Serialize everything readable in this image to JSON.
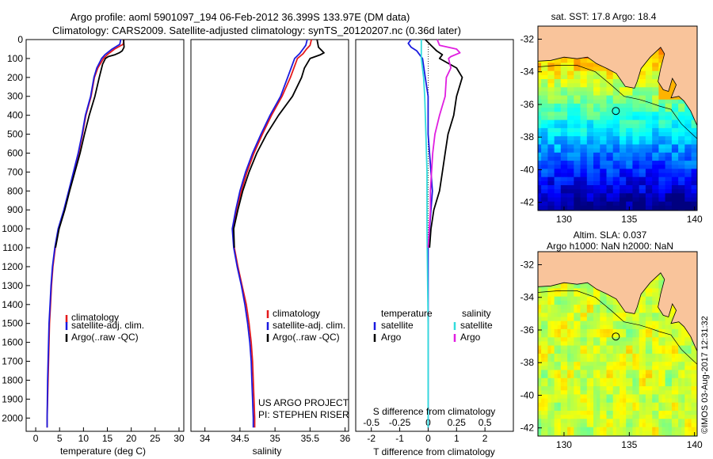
{
  "header": {
    "line1": "Argo profile: aoml 5901097_194 06-Feb-2012 36.399S 133.97E (DM data)",
    "line2": "Climatology: CARS2009. Satellite-adjusted climatology: synTS_20120207.nc (0.36d later)"
  },
  "colors": {
    "climatology": "#e41a1c",
    "satellite": "#1a1adf",
    "argo": "#000000",
    "satellite_salinity": "#33dddd",
    "argo_salinity": "#e01ee0",
    "land": "#f9c49b"
  },
  "depth_ticks": [
    0,
    100,
    200,
    300,
    400,
    500,
    600,
    700,
    800,
    900,
    1000,
    1100,
    1200,
    1300,
    1400,
    1500,
    1600,
    1700,
    1800,
    1900,
    2000
  ],
  "chart_data": [
    {
      "type": "line",
      "name": "temperature",
      "xlabel": "temperature (deg C)",
      "x_ticks": [
        0,
        5,
        10,
        15,
        20,
        25,
        30
      ],
      "xlim": [
        -2,
        31
      ],
      "ylim": [
        2070,
        0
      ],
      "legend": [
        "climatology",
        "satellite-adj. clim.",
        "Argo(..raw -QC)"
      ],
      "series": [
        {
          "name": "climatology",
          "points": [
            [
              18.5,
              0
            ],
            [
              18.3,
              25
            ],
            [
              16.5,
              50
            ],
            [
              15,
              80
            ],
            [
              14.2,
              100
            ],
            [
              13,
              150
            ],
            [
              12.3,
              200
            ],
            [
              11.6,
              300
            ],
            [
              10.5,
              400
            ],
            [
              9.8,
              500
            ],
            [
              9,
              600
            ],
            [
              8,
              700
            ],
            [
              7,
              800
            ],
            [
              6,
              900
            ],
            [
              4.8,
              1000
            ],
            [
              4.1,
              1100
            ],
            [
              3.6,
              1200
            ],
            [
              3.3,
              1300
            ],
            [
              3.1,
              1400
            ],
            [
              2.9,
              1500
            ],
            [
              2.8,
              1600
            ],
            [
              2.7,
              1700
            ],
            [
              2.6,
              1800
            ],
            [
              2.5,
              1900
            ],
            [
              2.4,
              2000
            ],
            [
              2.4,
              2050
            ]
          ]
        },
        {
          "name": "satellite-adj. clim.",
          "points": [
            [
              17.8,
              0
            ],
            [
              17.6,
              25
            ],
            [
              16,
              50
            ],
            [
              14.5,
              80
            ],
            [
              13.8,
              100
            ],
            [
              12.8,
              150
            ],
            [
              12.2,
              200
            ],
            [
              11.5,
              300
            ],
            [
              10.4,
              400
            ],
            [
              9.7,
              500
            ],
            [
              8.9,
              600
            ],
            [
              7.9,
              700
            ],
            [
              6.9,
              800
            ],
            [
              5.9,
              900
            ],
            [
              4.7,
              1000
            ],
            [
              4.0,
              1100
            ],
            [
              3.5,
              1200
            ],
            [
              3.2,
              1300
            ],
            [
              3.0,
              1400
            ],
            [
              2.8,
              1500
            ],
            [
              2.7,
              1600
            ],
            [
              2.6,
              1700
            ],
            [
              2.5,
              1800
            ],
            [
              2.45,
              1900
            ],
            [
              2.4,
              2000
            ],
            [
              2.4,
              2050
            ]
          ]
        },
        {
          "name": "Argo(..raw -QC)",
          "points": [
            [
              18.4,
              0
            ],
            [
              18.5,
              40
            ],
            [
              18.1,
              60
            ],
            [
              17.5,
              70
            ],
            [
              16.6,
              80
            ],
            [
              15.2,
              90
            ],
            [
              14.6,
              100
            ],
            [
              14,
              130
            ],
            [
              13.3,
              200
            ],
            [
              12.4,
              300
            ],
            [
              11.2,
              400
            ],
            [
              10.2,
              500
            ],
            [
              9.3,
              600
            ],
            [
              8.2,
              700
            ],
            [
              7.1,
              800
            ],
            [
              6.1,
              900
            ],
            [
              4.9,
              1000
            ],
            [
              4.15,
              1100
            ]
          ]
        }
      ]
    },
    {
      "type": "line",
      "name": "salinity",
      "xlabel": "salinity",
      "x_ticks": [
        34,
        34.5,
        35,
        35.5,
        36
      ],
      "xlim": [
        33.8,
        36.05
      ],
      "ylim": [
        2070,
        0
      ],
      "legend": [
        "climatology",
        "satellite-adj. clim.",
        "Argo(..raw -QC)"
      ],
      "annotation": [
        "US ARGO PROJECT",
        "PI: STEPHEN RISER"
      ],
      "series": [
        {
          "name": "climatology",
          "points": [
            [
              35.52,
              0
            ],
            [
              35.5,
              30
            ],
            [
              35.45,
              50
            ],
            [
              35.4,
              75
            ],
            [
              35.32,
              100
            ],
            [
              35.22,
              200
            ],
            [
              35.1,
              300
            ],
            [
              34.95,
              400
            ],
            [
              34.82,
              500
            ],
            [
              34.7,
              600
            ],
            [
              34.6,
              700
            ],
            [
              34.52,
              800
            ],
            [
              34.45,
              900
            ],
            [
              34.4,
              1000
            ],
            [
              34.42,
              1100
            ],
            [
              34.47,
              1200
            ],
            [
              34.53,
              1300
            ],
            [
              34.59,
              1400
            ],
            [
              34.63,
              1500
            ],
            [
              34.66,
              1600
            ],
            [
              34.68,
              1700
            ],
            [
              34.69,
              1800
            ],
            [
              34.7,
              1900
            ],
            [
              34.71,
              2000
            ],
            [
              34.71,
              2050
            ]
          ]
        },
        {
          "name": "satellite-adj. clim.",
          "points": [
            [
              35.46,
              0
            ],
            [
              35.44,
              30
            ],
            [
              35.4,
              50
            ],
            [
              35.35,
              75
            ],
            [
              35.28,
              100
            ],
            [
              35.18,
              200
            ],
            [
              35.08,
              300
            ],
            [
              34.93,
              400
            ],
            [
              34.8,
              500
            ],
            [
              34.68,
              600
            ],
            [
              34.58,
              700
            ],
            [
              34.5,
              800
            ],
            [
              34.44,
              900
            ],
            [
              34.39,
              1000
            ],
            [
              34.41,
              1100
            ],
            [
              34.46,
              1200
            ],
            [
              34.52,
              1300
            ],
            [
              34.57,
              1400
            ],
            [
              34.61,
              1500
            ],
            [
              34.64,
              1600
            ],
            [
              34.66,
              1700
            ],
            [
              34.67,
              1800
            ],
            [
              34.68,
              1900
            ],
            [
              34.69,
              2000
            ],
            [
              34.69,
              2050
            ]
          ]
        },
        {
          "name": "Argo(..raw -QC)",
          "points": [
            [
              35.6,
              0
            ],
            [
              35.62,
              40
            ],
            [
              35.7,
              70
            ],
            [
              35.65,
              80
            ],
            [
              35.5,
              100
            ],
            [
              35.42,
              150
            ],
            [
              35.38,
              200
            ],
            [
              35.25,
              300
            ],
            [
              35.05,
              400
            ],
            [
              34.88,
              500
            ],
            [
              34.74,
              600
            ],
            [
              34.63,
              700
            ],
            [
              34.54,
              800
            ],
            [
              34.47,
              900
            ],
            [
              34.41,
              1000
            ],
            [
              34.42,
              1100
            ]
          ]
        }
      ]
    },
    {
      "type": "line",
      "name": "difference from climatology",
      "x_ticks_top": [
        -0.5,
        -0.25,
        0,
        0.25,
        0.5
      ],
      "x_ticks_bottom": [
        -2,
        -1,
        0,
        1,
        2
      ],
      "xlabel_top": "S difference from climatology",
      "xlabel_bottom": "T difference from climatology",
      "xlim": [
        -2.55,
        3.0
      ],
      "ylim": [
        2070,
        0
      ],
      "legend_temperature": {
        "title": "temperature",
        "items": [
          "satellite",
          "Argo"
        ]
      },
      "legend_salinity": {
        "title": "salinity",
        "items": [
          "satellite",
          "Argo"
        ]
      },
      "series": [
        {
          "name": "T satellite",
          "points": [
            [
              -0.6,
              0
            ],
            [
              -0.7,
              20
            ],
            [
              -0.6,
              40
            ],
            [
              -0.4,
              60
            ],
            [
              -0.2,
              100
            ],
            [
              -0.1,
              200
            ],
            [
              0,
              300
            ],
            [
              0,
              500
            ],
            [
              0.05,
              600
            ],
            [
              0.1,
              700
            ],
            [
              0.15,
              800
            ],
            [
              0.1,
              900
            ],
            [
              0.05,
              1000
            ],
            [
              0,
              1100
            ],
            [
              0,
              1500
            ],
            [
              0,
              2050
            ]
          ]
        },
        {
          "name": "T Argo",
          "points": [
            [
              -0.1,
              0
            ],
            [
              0.1,
              30
            ],
            [
              0.3,
              60
            ],
            [
              0.5,
              80
            ],
            [
              0.4,
              100
            ],
            [
              1.0,
              150
            ],
            [
              1.2,
              200
            ],
            [
              1.0,
              300
            ],
            [
              0.9,
              400
            ],
            [
              0.7,
              500
            ],
            [
              0.6,
              600
            ],
            [
              0.5,
              700
            ],
            [
              0.4,
              800
            ],
            [
              0.2,
              900
            ],
            [
              0.1,
              1000
            ],
            [
              0.05,
              1100
            ]
          ]
        },
        {
          "name": "S satellite",
          "points": [
            [
              -0.06,
              0
            ],
            [
              -0.06,
              100
            ],
            [
              -0.04,
              200
            ],
            [
              -0.03,
              300
            ],
            [
              -0.02,
              500
            ],
            [
              -0.01,
              700
            ],
            [
              -0.01,
              1000
            ],
            [
              0,
              1500
            ],
            [
              0,
              2050
            ]
          ]
        },
        {
          "name": "S Argo",
          "points": [
            [
              0.08,
              0
            ],
            [
              0.1,
              30
            ],
            [
              0.25,
              50
            ],
            [
              0.28,
              70
            ],
            [
              0.2,
              90
            ],
            [
              0.18,
              100
            ],
            [
              0.2,
              150
            ],
            [
              0.16,
              200
            ],
            [
              0.15,
              300
            ],
            [
              0.1,
              400
            ],
            [
              0.06,
              500
            ],
            [
              0.04,
              600
            ],
            [
              0.03,
              700
            ],
            [
              0.02,
              800
            ],
            [
              0.02,
              900
            ],
            [
              0.01,
              1000
            ],
            [
              0.0,
              1100
            ]
          ]
        }
      ]
    },
    {
      "type": "heatmap",
      "name": "SST map",
      "title": "sat. SST: 17.8 Argo: 18.4",
      "x_ticks": [
        130,
        135,
        140
      ],
      "y_ticks": [
        -32,
        -34,
        -36,
        -38,
        -40,
        -42
      ],
      "xlim": [
        128,
        140.2
      ],
      "ylim": [
        -42.5,
        -31.2
      ],
      "marker": {
        "lon": 133.97,
        "lat": -36.399
      }
    },
    {
      "type": "heatmap",
      "name": "SLA map",
      "title": "Altim. SLA: 0.037",
      "subtitle": "Argo h1000: NaN h2000: NaN",
      "x_ticks": [
        130,
        135,
        140
      ],
      "y_ticks": [
        -32,
        -34,
        -36,
        -38,
        -40,
        -42
      ],
      "xlim": [
        128,
        140.2
      ],
      "ylim": [
        -42.5,
        -31.2
      ],
      "marker": {
        "lon": 133.97,
        "lat": -36.399
      }
    }
  ],
  "credit": "©IMOS 03-Aug-2017 12:31:32"
}
